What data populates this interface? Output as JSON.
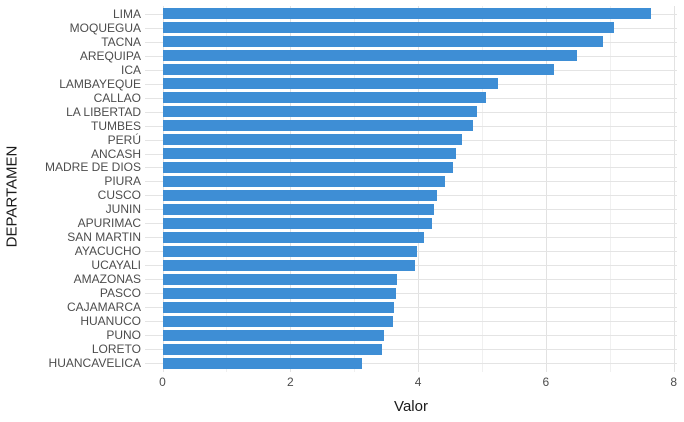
{
  "chart_data": {
    "type": "bar",
    "orientation": "horizontal",
    "title": "",
    "xlabel": "Valor",
    "ylabel": "DEPARTAMEN",
    "xlim": [
      0,
      8.05
    ],
    "xticks": [
      0,
      2,
      4,
      6,
      8
    ],
    "xticks_minor": [
      1,
      3,
      5,
      7
    ],
    "grid": "on",
    "legend": "none",
    "bar_color": "#3e8ed5",
    "categories": [
      "LIMA",
      "MOQUEGUA",
      "TACNA",
      "AREQUIPA",
      "ICA",
      "LAMBAYEQUE",
      "CALLAO",
      "LA LIBERTAD",
      "TUMBES",
      "PERÚ",
      "ANCASH",
      "MADRE DE DIOS",
      "PIURA",
      "CUSCO",
      "JUNIN",
      "APURIMAC",
      "SAN MARTIN",
      "AYACUCHO",
      "UCAYALI",
      "AMAZONAS",
      "PASCO",
      "CAJAMARCA",
      "HUANUCO",
      "PUNO",
      "LORETO",
      "HUANCAVELICA"
    ],
    "values": [
      7.64,
      7.07,
      6.89,
      6.48,
      6.13,
      5.25,
      5.06,
      4.92,
      4.86,
      4.69,
      4.59,
      4.54,
      4.42,
      4.29,
      4.25,
      4.22,
      4.09,
      3.98,
      3.95,
      3.67,
      3.66,
      3.62,
      3.61,
      3.47,
      3.44,
      3.12
    ]
  },
  "colors": {
    "background": "#ffffff",
    "bar": "#3e8ed5",
    "grid_major": "#e2e2e2",
    "grid_minor": "#f0f0f0",
    "tick_text": "#4d4d4d",
    "title_text": "#1a1a1a"
  }
}
